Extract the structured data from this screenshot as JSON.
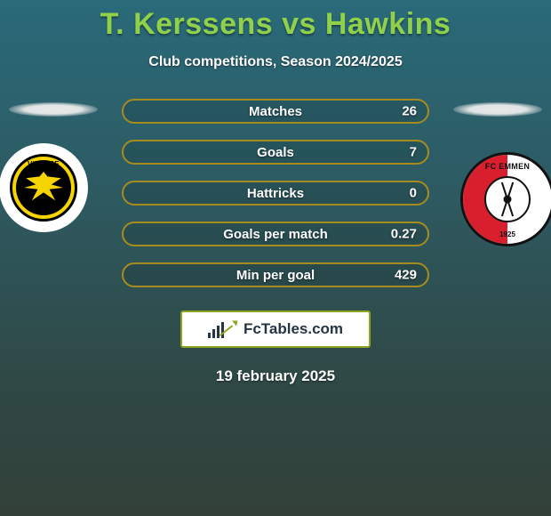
{
  "title": "T. Kerssens vs Hawkins",
  "subtitle": "Club competitions, Season 2024/2025",
  "left_team": {
    "label": "VITESSE"
  },
  "right_team": {
    "label": "FC EMMEN",
    "year": "1925"
  },
  "stats": [
    {
      "label": "Matches",
      "value": "26"
    },
    {
      "label": "Goals",
      "value": "7"
    },
    {
      "label": "Hattricks",
      "value": "0"
    },
    {
      "label": "Goals per match",
      "value": "0.27"
    },
    {
      "label": "Min per goal",
      "value": "429"
    }
  ],
  "brand": {
    "text_left": "Fc",
    "text_right": "Tables.com"
  },
  "date": "19 february 2025",
  "colors": {
    "accent_green": "#8fd14a",
    "pill_border": "#a68c1f",
    "brand_border": "#8fa522",
    "brand_text": "#263544",
    "vitesse_yellow": "#f5d400",
    "emmen_red": "#d91e2e"
  }
}
